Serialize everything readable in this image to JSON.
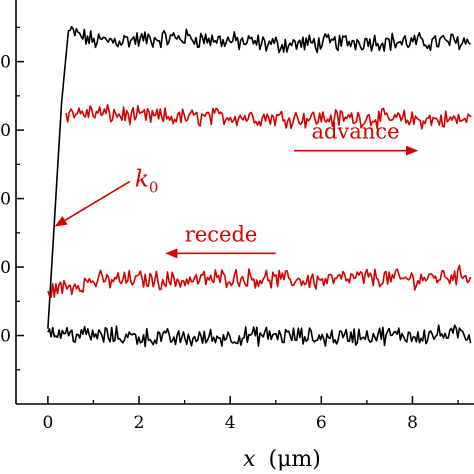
{
  "chart_data": {
    "type": "line",
    "xlabel_var": "x",
    "xlabel_unit": "(μm)",
    "xlim": [
      -0.7,
      9.35
    ],
    "ylim": [
      0,
      5.9
    ],
    "x_ticks": [
      0,
      2,
      4,
      6,
      8
    ],
    "y_tick_positions": [
      1.0,
      2.0,
      3.0,
      4.0,
      5.0
    ],
    "y_tick_labels": [
      "0",
      "0",
      "0",
      "0",
      "0"
    ],
    "grid": false,
    "series": [
      {
        "color": "#000000",
        "x": [
          0,
          0.1,
          0.2,
          0.3,
          0.45,
          1,
          2,
          3,
          4,
          5,
          6,
          7,
          8,
          9,
          9.3
        ],
        "y": [
          1.1,
          2.2,
          3.3,
          4.4,
          5.45,
          5.3,
          5.32,
          5.35,
          5.3,
          5.25,
          5.27,
          5.3,
          5.28,
          5.3,
          5.3
        ]
      },
      {
        "color": "#d60000",
        "x": [
          0.4,
          1,
          2,
          3,
          4,
          5,
          6,
          7,
          8,
          9,
          9.3
        ],
        "y": [
          4.25,
          4.25,
          4.2,
          4.18,
          4.2,
          4.18,
          4.17,
          4.18,
          4.15,
          4.15,
          4.15
        ]
      },
      {
        "color": "#d60000",
        "x": [
          0,
          1,
          2,
          3,
          4,
          5,
          6,
          7,
          8,
          9,
          9.3
        ],
        "y": [
          1.65,
          1.8,
          1.82,
          1.8,
          1.85,
          1.82,
          1.8,
          1.85,
          1.82,
          1.88,
          1.9
        ]
      },
      {
        "color": "#000000",
        "x": [
          0,
          1,
          2,
          3,
          4,
          5,
          6,
          7,
          8,
          9,
          9.3
        ],
        "y": [
          1.05,
          1.0,
          0.98,
          0.95,
          0.98,
          1.0,
          0.97,
          1.0,
          1.0,
          1.02,
          1.0
        ]
      }
    ],
    "annotations": [
      {
        "text": "advance",
        "arrow_from": [
          5.4,
          3.7
        ],
        "arrow_to": [
          8.1,
          3.7
        ],
        "color": "#d60000"
      },
      {
        "text": "recede",
        "arrow_from": [
          5.0,
          2.2
        ],
        "arrow_to": [
          2.6,
          2.2
        ],
        "color": "#d60000"
      },
      {
        "text": "k",
        "subscript": "0",
        "arrow_from": [
          1.8,
          3.25
        ],
        "arrow_to": [
          0.17,
          2.6
        ],
        "color": "#d60000"
      }
    ]
  }
}
